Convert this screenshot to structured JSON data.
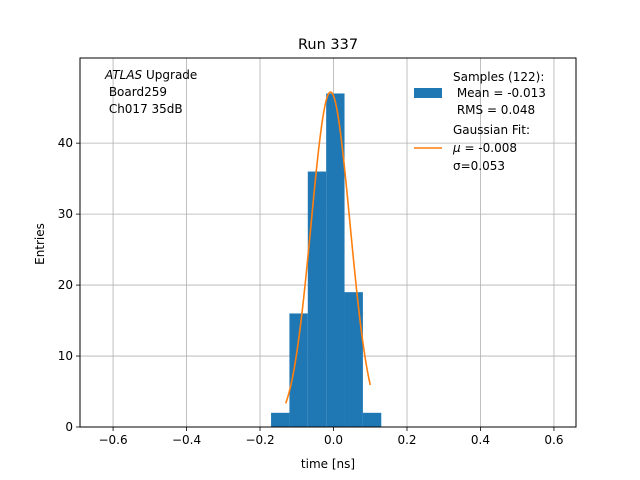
{
  "chart_data": {
    "type": "bar",
    "title": "Run 337",
    "xlabel": "time [ns]",
    "ylabel": "Entries",
    "xlim": [
      -0.69,
      0.66
    ],
    "ylim": [
      0,
      52
    ],
    "grid": true,
    "x_ticks": [
      -0.6,
      -0.4,
      -0.2,
      0.0,
      0.2,
      0.4,
      0.6
    ],
    "x_tick_labels": [
      "−0.6",
      "−0.4",
      "−0.2",
      "0.0",
      "0.2",
      "0.4",
      "0.6"
    ],
    "y_ticks": [
      0,
      10,
      20,
      30,
      40
    ],
    "y_tick_labels": [
      "0",
      "10",
      "20",
      "30",
      "40"
    ],
    "bin_edges": [
      -0.17,
      -0.12,
      -0.07,
      -0.02,
      0.03,
      0.08,
      0.13
    ],
    "bin_values": [
      2,
      16,
      36,
      47,
      19,
      2
    ],
    "gaussian_fit": {
      "mu": -0.008,
      "sigma": 0.053,
      "amplitude": 47.2,
      "x_range": [
        -0.13,
        0.1
      ]
    },
    "annotation": {
      "italic": "ATLAS",
      "rest": " Upgrade",
      "line2": " Board259",
      "line3": " Ch017 35dB"
    },
    "legend": {
      "position": "upper right",
      "samples": {
        "line1": "Samples (122):",
        "line2": " Mean = -0.013",
        "line3": " RMS = 0.048"
      },
      "fit": {
        "line1": "Gaussian Fit:",
        "mu_symbol": "μ",
        "mu_value": " = -0.008",
        "sigma_symbol": "σ",
        "sigma_value": "=0.053"
      }
    },
    "colors": {
      "bars": "#1f77b4",
      "fit": "#ff7f0e",
      "grid": "#b0b0b0"
    }
  }
}
